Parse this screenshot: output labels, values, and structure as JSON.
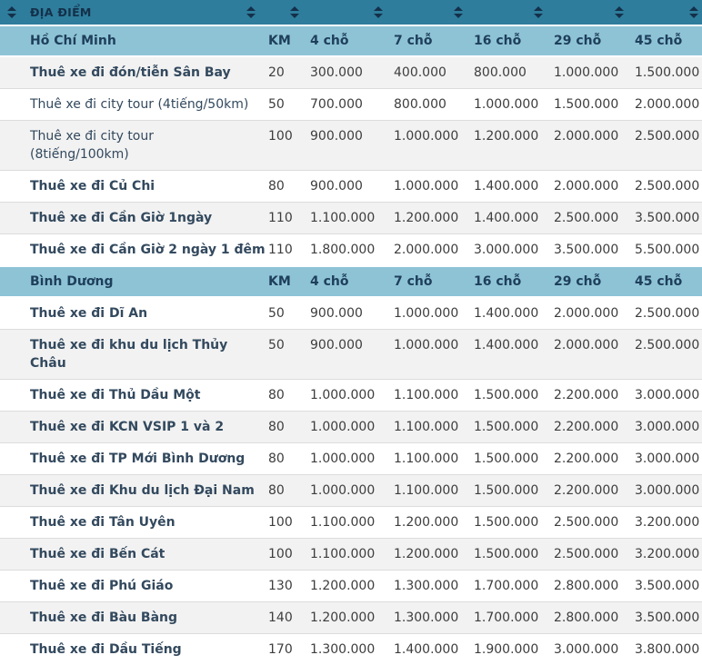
{
  "colors": {
    "teal_header": "#2e7d9c",
    "section_bg": "#8ec3d6",
    "stripe_bg": "#f2f2f2",
    "navy_text": "#1e3f5a",
    "route_text": "#33495e",
    "value_text": "#3d3d3d",
    "icon_color": "#14304a"
  },
  "table": {
    "sort_header": {
      "label": "ĐỊA ĐIỂM",
      "sort_icon": "sort-up-down-icon"
    },
    "column_headers": [
      "KM",
      "4 chỗ",
      "7 chỗ",
      "16 chỗ",
      "29 chỗ",
      "45 chỗ"
    ],
    "sections": [
      {
        "title": "Hồ Chí Minh",
        "column_headers": [
          "KM",
          "4 chỗ",
          "7 chỗ",
          "16 chỗ",
          "29 chỗ",
          "45 chỗ"
        ],
        "rows": [
          {
            "route": "Thuê xe đi đón/tiễn Sân Bay",
            "km": "20",
            "prices": [
              "300.000",
              "400.000",
              "800.000",
              "1.000.000",
              "1.500.000"
            ],
            "bold": true
          },
          {
            "route": "Thuê xe đi city tour (4tiếng/50km)",
            "km": "50",
            "prices": [
              "700.000",
              "800.000",
              "1.000.000",
              "1.500.000",
              "2.000.000"
            ],
            "bold": false
          },
          {
            "route": "Thuê xe đi city tour\n(8tiếng/100km)",
            "km": "100",
            "prices": [
              "900.000",
              "1.000.000",
              "1.200.000",
              "2.000.000",
              "2.500.000"
            ],
            "bold": false
          },
          {
            "route": "Thuê xe đi Củ Chi",
            "km": "80",
            "prices": [
              "900.000",
              "1.000.000",
              "1.400.000",
              "2.000.000",
              "2.500.000"
            ],
            "bold": true
          },
          {
            "route": "Thuê xe đi Cần Giờ 1ngày",
            "km": "110",
            "prices": [
              "1.100.000",
              "1.200.000",
              "1.400.000",
              "2.500.000",
              "3.500.000"
            ],
            "bold": true
          },
          {
            "route": "Thuê xe đi Cần Giờ 2 ngày 1 đêm",
            "km": "110",
            "prices": [
              "1.800.000",
              "2.000.000",
              "3.000.000",
              "3.500.000",
              "5.500.000"
            ],
            "bold": true
          }
        ]
      },
      {
        "title": "Bình Dương",
        "column_headers": [
          "KM",
          "4 chỗ",
          "7 chỗ",
          "16 chỗ",
          "29 chỗ",
          "45 chỗ"
        ],
        "rows": [
          {
            "route": "Thuê xe đi Dĩ An",
            "km": "50",
            "prices": [
              "900.000",
              "1.000.000",
              "1.400.000",
              "2.000.000",
              "2.500.000"
            ],
            "bold": true
          },
          {
            "route": "Thuê xe đi khu du lịch Thủy Châu",
            "km": "50",
            "prices": [
              "900.000",
              "1.000.000",
              "1.400.000",
              "2.000.000",
              "2.500.000"
            ],
            "bold": true
          },
          {
            "route": "Thuê xe đi Thủ Dầu Một",
            "km": "80",
            "prices": [
              "1.000.000",
              "1.100.000",
              "1.500.000",
              "2.200.000",
              "3.000.000"
            ],
            "bold": true
          },
          {
            "route": "Thuê xe đi KCN VSIP 1 và 2",
            "km": "80",
            "prices": [
              "1.000.000",
              "1.100.000",
              "1.500.000",
              "2.200.000",
              "3.000.000"
            ],
            "bold": true
          },
          {
            "route": "Thuê xe đi TP Mới Bình Dương",
            "km": "80",
            "prices": [
              "1.000.000",
              "1.100.000",
              "1.500.000",
              "2.200.000",
              "3.000.000"
            ],
            "bold": true
          },
          {
            "route": "Thuê xe đi Khu du lịch Đại Nam",
            "km": "80",
            "prices": [
              "1.000.000",
              "1.100.000",
              "1.500.000",
              "2.200.000",
              "3.000.000"
            ],
            "bold": true
          },
          {
            "route": "Thuê xe đi Tân Uyên",
            "km": "100",
            "prices": [
              "1.100.000",
              "1.200.000",
              "1.500.000",
              "2.500.000",
              "3.200.000"
            ],
            "bold": true
          },
          {
            "route": "Thuê xe đi Bến Cát",
            "km": "100",
            "prices": [
              "1.100.000",
              "1.200.000",
              "1.500.000",
              "2.500.000",
              "3.200.000"
            ],
            "bold": true
          },
          {
            "route": "Thuê xe đi Phú Giáo",
            "km": "130",
            "prices": [
              "1.200.000",
              "1.300.000",
              "1.700.000",
              "2.800.000",
              "3.500.000"
            ],
            "bold": true
          },
          {
            "route": "Thuê xe đi Bàu Bàng",
            "km": "140",
            "prices": [
              "1.200.000",
              "1.300.000",
              "1.700.000",
              "2.800.000",
              "3.500.000"
            ],
            "bold": true
          },
          {
            "route": "Thuê xe đi Dầu Tiếng",
            "km": "170",
            "prices": [
              "1.300.000",
              "1.400.000",
              "1.900.000",
              "3.000.000",
              "3.800.000"
            ],
            "bold": true
          }
        ]
      }
    ]
  }
}
